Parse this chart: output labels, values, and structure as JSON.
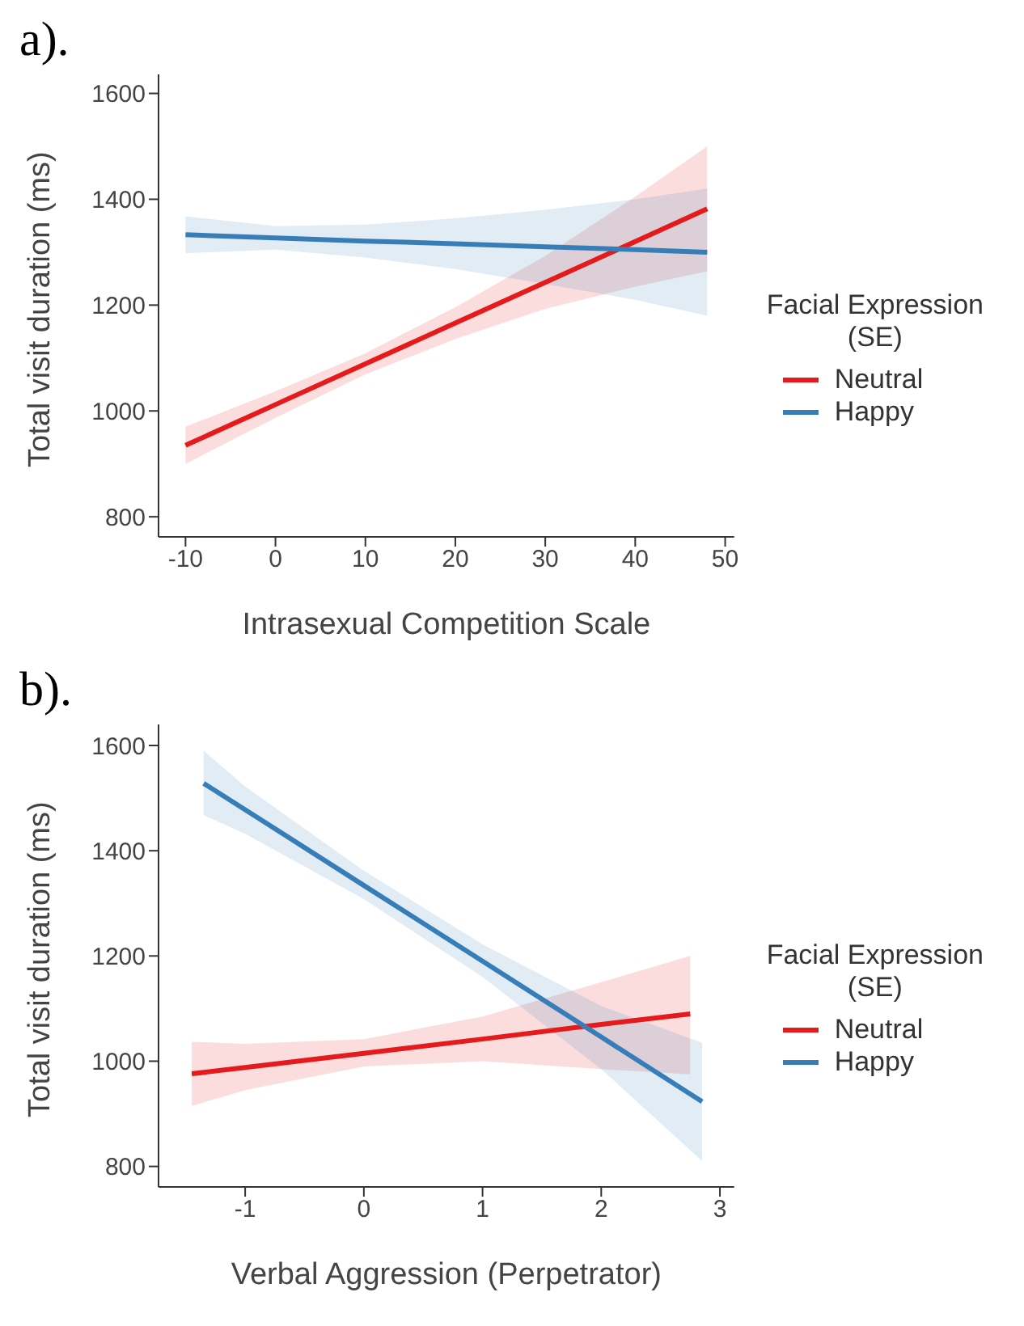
{
  "chart_data": [
    {
      "type": "line",
      "title": "a).",
      "xlabel": "Intrasexual Competition Scale",
      "ylabel": "Total visit duration (ms)",
      "legend_title": "Facial Expression\n(SE)",
      "legend": "right",
      "grid": false,
      "marker": "none",
      "line_style": "solid",
      "xlim": [
        -13,
        51
      ],
      "xticks": [
        -10,
        0,
        10,
        20,
        30,
        40,
        50
      ],
      "ylim": [
        762,
        1636
      ],
      "yticks": [
        800,
        1000,
        1200,
        1400,
        1600
      ],
      "series": [
        {
          "name": "Neutral",
          "color": "#e41a1c",
          "x": [
            -10,
            0,
            10,
            20,
            30,
            40,
            48
          ],
          "values": [
            935,
            1012,
            1089,
            1166,
            1243,
            1320,
            1382
          ],
          "lower": [
            900,
            987,
            1069,
            1136,
            1193,
            1235,
            1264
          ],
          "upper": [
            970,
            1037,
            1109,
            1196,
            1293,
            1405,
            1500
          ]
        },
        {
          "name": "Happy",
          "color": "#377eb8",
          "x": [
            -10,
            0,
            10,
            20,
            30,
            40,
            48
          ],
          "values": [
            1333,
            1327,
            1321,
            1316,
            1310,
            1305,
            1300
          ],
          "lower": [
            1298,
            1305,
            1290,
            1268,
            1240,
            1210,
            1180
          ],
          "upper": [
            1368,
            1349,
            1352,
            1364,
            1380,
            1400,
            1420
          ]
        }
      ]
    },
    {
      "type": "line",
      "title": "b).",
      "xlabel": "Verbal Aggression (Perpetrator)",
      "ylabel": "Total visit duration (ms)",
      "legend_title": "Facial Expression\n(SE)",
      "legend": "right",
      "grid": false,
      "marker": "none",
      "line_style": "solid",
      "xlim": [
        -1.73,
        3.12
      ],
      "xticks": [
        -1,
        0,
        1,
        2,
        3
      ],
      "ylim": [
        761,
        1640
      ],
      "yticks": [
        800,
        1000,
        1200,
        1400,
        1600
      ],
      "series": [
        {
          "name": "Neutral",
          "color": "#e41a1c",
          "x": [
            -1.45,
            -1,
            0,
            1,
            2,
            2.75
          ],
          "values": [
            976,
            988,
            1015,
            1042,
            1070,
            1090
          ],
          "lower": [
            915,
            945,
            990,
            1000,
            985,
            975
          ],
          "upper": [
            1037,
            1033,
            1042,
            1085,
            1150,
            1200
          ]
        },
        {
          "name": "Happy",
          "color": "#377eb8",
          "x": [
            -1.35,
            -1,
            0,
            1,
            2,
            2.85
          ],
          "values": [
            1528,
            1478,
            1334,
            1190,
            1046,
            923
          ],
          "lower": [
            1468,
            1432,
            1308,
            1160,
            985,
            810
          ],
          "upper": [
            1590,
            1522,
            1362,
            1222,
            1105,
            1035
          ]
        }
      ]
    }
  ]
}
